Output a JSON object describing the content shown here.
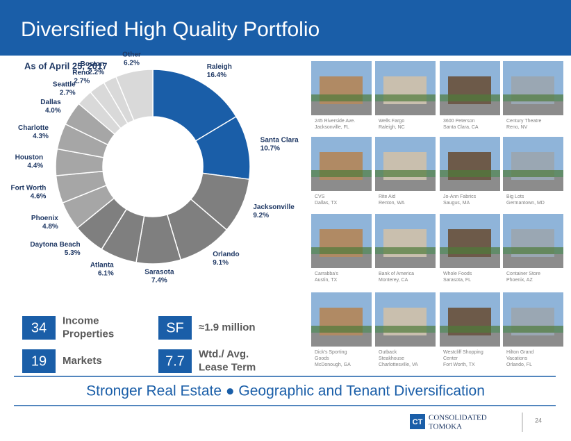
{
  "header": {
    "title": "Diversified High Quality Portfolio"
  },
  "chart_data": {
    "type": "pie",
    "subtitle": "As of April 25, 2017",
    "categories": [
      "Raleigh",
      "Santa Clara",
      "Jacksonville",
      "Orlando",
      "Sarasota",
      "Atlanta",
      "Daytona Beach",
      "Phoenix",
      "Fort Worth",
      "Houston",
      "Charlotte",
      "Dallas",
      "Seattle",
      "Reno",
      "Boston",
      "Other"
    ],
    "values": [
      16.4,
      10.7,
      9.2,
      9.1,
      7.4,
      6.1,
      5.3,
      4.8,
      4.6,
      4.4,
      4.3,
      4.0,
      2.7,
      2.7,
      2.2,
      6.2
    ],
    "value_labels": [
      "16.4%",
      "10.7%",
      "9.2%",
      "9.1%",
      "7.4%",
      "6.1%",
      "5.3%",
      "4.8%",
      "4.6%",
      "4.4%",
      "4.3%",
      "4.0%",
      "2.7%",
      "2.7%",
      "2.2%",
      "6.2%"
    ],
    "colors": [
      "#1a5ea8",
      "#1a5ea8",
      "#7f7f7f",
      "#7f7f7f",
      "#7f7f7f",
      "#7f7f7f",
      "#7f7f7f",
      "#a6a6a6",
      "#a6a6a6",
      "#a6a6a6",
      "#a6a6a6",
      "#a6a6a6",
      "#d9d9d9",
      "#d9d9d9",
      "#d9d9d9",
      "#d9d9d9"
    ]
  },
  "stats": [
    {
      "value": "34",
      "label": [
        "Income",
        "Properties"
      ]
    },
    {
      "value": "19",
      "label": [
        "Markets"
      ]
    },
    {
      "value": "SF",
      "label": [
        "≈1.9 million"
      ]
    },
    {
      "value": "7.7",
      "label": [
        "Wtd./ Avg.",
        "Lease Term"
      ]
    }
  ],
  "properties": [
    [
      "245 Riverside Ave.",
      "Jacksonville, FL"
    ],
    [
      "Wells Fargo",
      "Raleigh, NC"
    ],
    [
      "3600 Peterson",
      "Santa Clara, CA"
    ],
    [
      "Century Theatre",
      "Reno, NV"
    ],
    [
      "CVS",
      "Dallas, TX"
    ],
    [
      "Rite Aid",
      "Renton, WA"
    ],
    [
      "Jo-Ann Fabrics",
      "Saugus, MA"
    ],
    [
      "Big Lots",
      "Germantown, MD"
    ],
    [
      "Carrabba's",
      "Austin, TX"
    ],
    [
      "Bank of America",
      "Monterey, CA"
    ],
    [
      "Whole Foods",
      "Sarasota, FL"
    ],
    [
      "Container Store",
      "Phoenix, AZ"
    ],
    [
      "Dick's Sporting",
      "Goods",
      "McDonough, GA"
    ],
    [
      "Outback",
      "Steakhouse",
      "Charlottesville, VA"
    ],
    [
      "Westcliff Shopping",
      "Center",
      "Fort Worth, TX"
    ],
    [
      "Hilton Grand",
      "Vacations",
      "Orlando, FL"
    ]
  ],
  "banner": "Stronger Real Estate ● Geographic and Tenant Diversification",
  "footer": {
    "logo_mark": "CT",
    "company": [
      "CONSOLIDATED",
      "TOMOKA"
    ],
    "page": "24"
  }
}
